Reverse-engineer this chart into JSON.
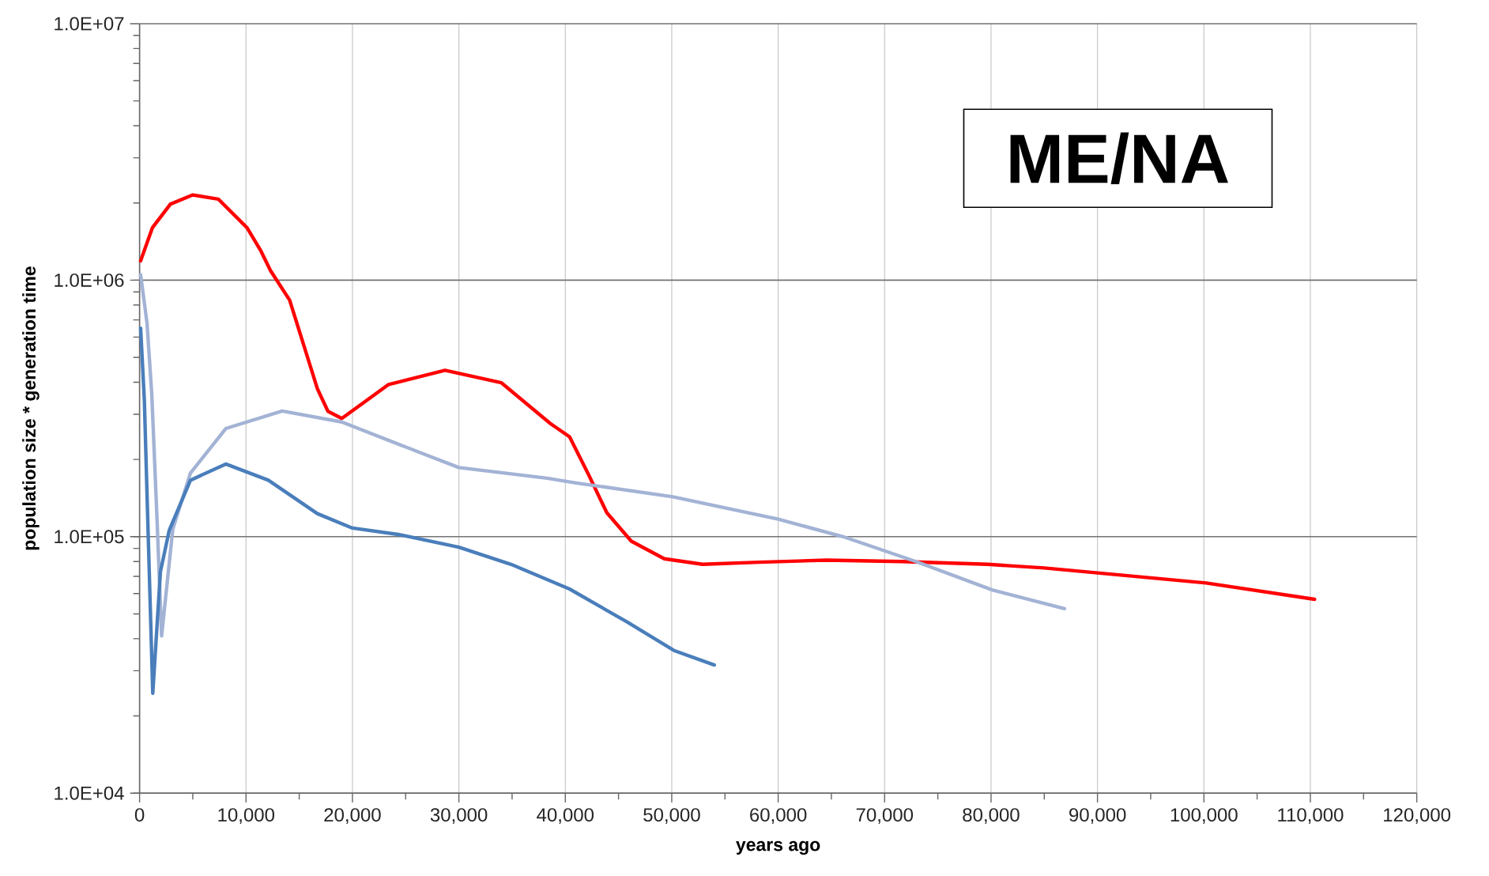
{
  "chart_data": {
    "type": "line",
    "title": "ME/NA",
    "xlabel": "years ago",
    "ylabel": "population size * generation time",
    "log": "y",
    "grid": true,
    "xlim": [
      0,
      120000
    ],
    "ylim": [
      10000,
      10000000
    ],
    "xticks": [
      {
        "value": 0,
        "label": "0"
      },
      {
        "value": 10000,
        "label": "10,000"
      },
      {
        "value": 20000,
        "label": "20,000"
      },
      {
        "value": 30000,
        "label": "30,000"
      },
      {
        "value": 40000,
        "label": "40,000"
      },
      {
        "value": 50000,
        "label": "50,000"
      },
      {
        "value": 60000,
        "label": "60,000"
      },
      {
        "value": 70000,
        "label": "70,000"
      },
      {
        "value": 80000,
        "label": "80,000"
      },
      {
        "value": 90000,
        "label": "90,000"
      },
      {
        "value": 100000,
        "label": "100,000"
      },
      {
        "value": 110000,
        "label": "110,000"
      },
      {
        "value": 120000,
        "label": "120,000"
      }
    ],
    "yticks": [
      {
        "value": 10000,
        "label": "1.0E+04"
      },
      {
        "value": 100000,
        "label": "1.0E+05"
      },
      {
        "value": 1000000,
        "label": "1.0E+06"
      },
      {
        "value": 10000000,
        "label": "1.0E+07"
      }
    ],
    "series": [
      {
        "color": "#ff0000",
        "x": [
          100,
          1200,
          2900,
          5000,
          7400,
          10100,
          11400,
          12300,
          14100,
          16700,
          17700,
          19000,
          23400,
          28700,
          34000,
          38600,
          40400,
          42200,
          43900,
          46200,
          49300,
          52900,
          58200,
          64500,
          71600,
          79700,
          85000,
          90400,
          100200,
          110400
        ],
        "values": [
          1190000,
          1600000,
          1980000,
          2150000,
          2070000,
          1600000,
          1300000,
          1090000,
          836000,
          378000,
          308000,
          289000,
          392000,
          445000,
          398000,
          276000,
          245000,
          174000,
          124000,
          96000,
          82000,
          78000,
          79500,
          81000,
          80000,
          78000,
          75500,
          72000,
          66000,
          57000
        ]
      },
      {
        "color": "#a3b3d5",
        "x": [
          100,
          700,
          1150,
          1640,
          2070,
          3120,
          4780,
          8100,
          13400,
          19000,
          26700,
          30000,
          38300,
          41000,
          50100,
          60000,
          66100,
          73100,
          80100,
          86900
        ],
        "values": [
          1050000,
          680000,
          357000,
          117000,
          41000,
          107000,
          177000,
          264000,
          309000,
          280000,
          210000,
          186000,
          169000,
          162000,
          143000,
          117000,
          100000,
          79600,
          62000,
          52400
        ]
      },
      {
        "color": "#4a7ebb",
        "x": [
          100,
          450,
          800,
          1240,
          1960,
          2790,
          4780,
          8100,
          12100,
          16700,
          20000,
          24300,
          30000,
          34900,
          40400,
          45800,
          50200,
          54000
        ],
        "values": [
          650000,
          340000,
          105000,
          24500,
          73000,
          106000,
          166000,
          192000,
          166000,
          123000,
          108000,
          102000,
          91000,
          78000,
          62500,
          46500,
          36000,
          31600
        ]
      }
    ]
  }
}
